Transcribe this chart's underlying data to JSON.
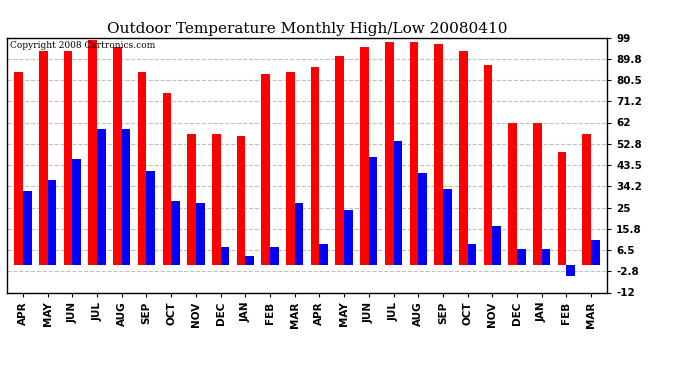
{
  "title": "Outdoor Temperature Monthly High/Low 20080410",
  "copyright": "Copyright 2008 Cartronics.com",
  "months": [
    "APR",
    "MAY",
    "JUN",
    "JUL",
    "AUG",
    "SEP",
    "OCT",
    "NOV",
    "DEC",
    "JAN",
    "FEB",
    "MAR",
    "APR",
    "MAY",
    "JUN",
    "JUL",
    "AUG",
    "SEP",
    "OCT",
    "NOV",
    "DEC",
    "JAN",
    "FEB",
    "MAR"
  ],
  "highs": [
    84,
    93,
    93,
    98,
    95,
    84,
    75,
    57,
    57,
    56,
    83,
    84,
    86,
    91,
    95,
    97,
    97,
    96,
    93,
    87,
    62,
    62,
    49,
    57
  ],
  "lows": [
    32,
    37,
    46,
    59,
    59,
    41,
    28,
    27,
    8,
    4,
    8,
    27,
    9,
    24,
    47,
    54,
    40,
    33,
    9,
    17,
    7,
    7,
    -5,
    11
  ],
  "ylim": [
    -12.0,
    99.0
  ],
  "yticks": [
    -12.0,
    -2.8,
    6.5,
    15.8,
    25.0,
    34.2,
    43.5,
    52.8,
    62.0,
    71.2,
    80.5,
    89.8,
    99.0
  ],
  "bar_width": 0.35,
  "high_color": "#FF0000",
  "low_color": "#0000FF",
  "bg_color": "#FFFFFF",
  "grid_color": "#C0C0C0",
  "title_fontsize": 11,
  "tick_fontsize": 7.5,
  "copyright_fontsize": 6.5
}
